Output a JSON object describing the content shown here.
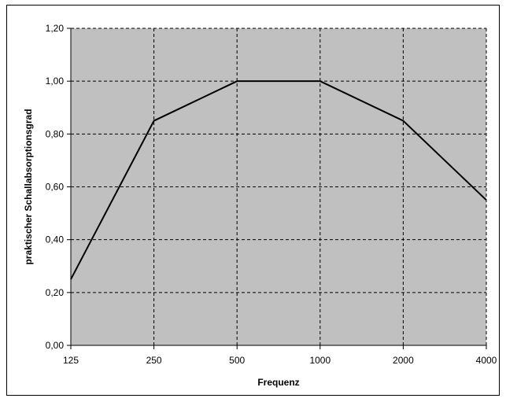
{
  "chart_data": {
    "type": "line",
    "xlabel": "Frequenz",
    "ylabel": "praktischer Schallabsorptionsgrad",
    "categories": [
      "125",
      "250",
      "500",
      "1000",
      "2000",
      "4000"
    ],
    "series": [
      {
        "values": [
          0.25,
          0.85,
          1.0,
          1.0,
          0.85,
          0.55
        ]
      }
    ],
    "ylim": [
      0,
      1.2
    ],
    "yticks": [
      "0,00",
      "0,20",
      "0,40",
      "0,60",
      "0,80",
      "1,00",
      "1,20"
    ],
    "grid": true,
    "legend": "none",
    "colors": {
      "plot_background": "#c0c0c0",
      "line": "#000000",
      "grid": "#000000"
    }
  }
}
